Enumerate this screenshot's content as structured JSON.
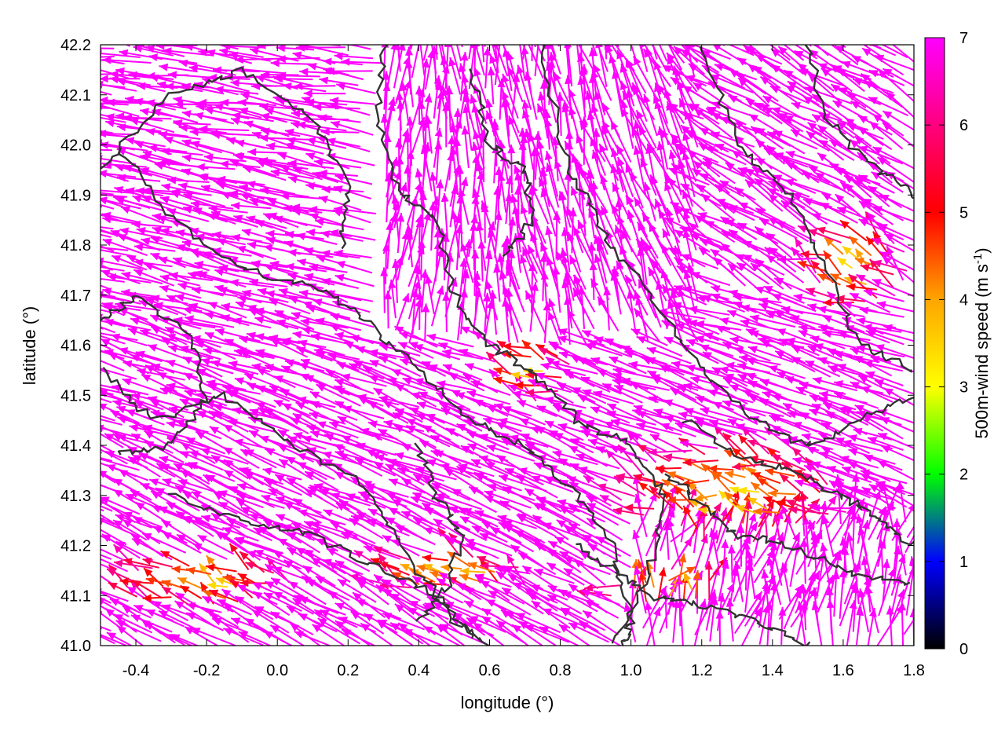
{
  "chart_data": {
    "type": "vector-field",
    "xlabel": "longitude (°)",
    "ylabel": "latitude (°)",
    "colorbar_label": "500m-wind speed (m s",
    "colorbar_label_sup": "-1",
    "colorbar_label_end": ")",
    "xlim": [
      -0.5,
      1.8
    ],
    "ylim": [
      41.0,
      42.2
    ],
    "x_ticks": [
      "-0.4",
      "-0.2",
      "0.0",
      "0.2",
      "0.4",
      "0.6",
      "0.8",
      "1.0",
      "1.2",
      "1.4",
      "1.6",
      "1.8"
    ],
    "y_ticks": [
      "41.0",
      "41.1",
      "41.2",
      "41.3",
      "41.4",
      "41.5",
      "41.6",
      "41.7",
      "41.8",
      "41.9",
      "42.0",
      "42.1",
      "42.2"
    ],
    "colorbar_range": [
      0,
      7
    ],
    "colorbar_ticks": [
      "0",
      "1",
      "2",
      "3",
      "4",
      "5",
      "6",
      "7"
    ],
    "colorbar_colors": [
      "#000000",
      "#0000ff",
      "#00ff00",
      "#ffff00",
      "#ffa500",
      "#ff0000",
      "#ff00ff"
    ],
    "vector_color_saturated": "#ff00ff",
    "contour_color": "#333333",
    "calm_regions": [
      {
        "lon": 1.3,
        "lat": 41.3,
        "rlon": 0.35,
        "rlat": 0.12
      },
      {
        "lon": 0.73,
        "lat": 41.55,
        "rlon": 0.12,
        "rlat": 0.07
      },
      {
        "lon": 1.1,
        "lat": 41.11,
        "rlon": 0.2,
        "rlat": 0.05
      },
      {
        "lon": -0.2,
        "lat": 41.12,
        "rlon": 0.3,
        "rlat": 0.06
      },
      {
        "lon": 0.5,
        "lat": 41.14,
        "rlon": 0.25,
        "rlat": 0.05
      },
      {
        "lon": 1.65,
        "lat": 41.75,
        "rlon": 0.15,
        "rlat": 0.1
      }
    ],
    "contours": [
      [
        [
          -0.5,
          41.55
        ],
        [
          -0.35,
          41.45
        ],
        [
          -0.15,
          41.5
        ],
        [
          0.05,
          41.4
        ],
        [
          0.25,
          41.32
        ],
        [
          0.35,
          41.2
        ],
        [
          0.5,
          41.05
        ],
        [
          0.6,
          41.0
        ]
      ],
      [
        [
          -0.45,
          42.0
        ],
        [
          -0.3,
          41.85
        ],
        [
          -0.1,
          41.75
        ],
        [
          0.1,
          41.72
        ],
        [
          0.25,
          41.65
        ],
        [
          0.4,
          41.55
        ],
        [
          0.55,
          41.45
        ],
        [
          0.7,
          41.4
        ],
        [
          0.85,
          41.3
        ],
        [
          0.95,
          41.2
        ],
        [
          1.0,
          41.05
        ],
        [
          0.98,
          41.0
        ]
      ],
      [
        [
          0.3,
          42.2
        ],
        [
          0.28,
          42.05
        ],
        [
          0.35,
          41.9
        ],
        [
          0.45,
          41.85
        ],
        [
          0.5,
          41.7
        ],
        [
          0.6,
          41.6
        ],
        [
          0.72,
          41.55
        ],
        [
          0.85,
          41.45
        ],
        [
          1.0,
          41.4
        ],
        [
          1.1,
          41.3
        ],
        [
          1.05,
          41.15
        ],
        [
          0.95,
          41.0
        ]
      ],
      [
        [
          0.75,
          42.2
        ],
        [
          0.8,
          42.0
        ],
        [
          0.9,
          41.85
        ],
        [
          1.05,
          41.7
        ],
        [
          1.2,
          41.55
        ],
        [
          1.35,
          41.45
        ],
        [
          1.5,
          41.4
        ],
        [
          1.65,
          41.45
        ],
        [
          1.8,
          41.5
        ]
      ],
      [
        [
          -0.3,
          41.3
        ],
        [
          -0.1,
          41.25
        ],
        [
          0.1,
          41.22
        ],
        [
          0.3,
          41.15
        ],
        [
          0.45,
          41.1
        ],
        [
          0.55,
          41.02
        ]
      ],
      [
        [
          1.15,
          41.45
        ],
        [
          1.3,
          41.38
        ],
        [
          1.45,
          41.35
        ],
        [
          1.6,
          41.3
        ],
        [
          1.7,
          41.25
        ],
        [
          1.8,
          41.2
        ]
      ],
      [
        [
          1.2,
          42.2
        ],
        [
          1.3,
          42.0
        ],
        [
          1.45,
          41.9
        ],
        [
          1.55,
          41.75
        ],
        [
          1.65,
          41.6
        ],
        [
          1.8,
          41.55
        ]
      ],
      [
        [
          -0.5,
          41.95
        ],
        [
          -0.3,
          42.1
        ],
        [
          -0.1,
          42.15
        ],
        [
          0.1,
          42.05
        ],
        [
          0.2,
          41.92
        ],
        [
          0.18,
          41.8
        ]
      ],
      [
        [
          0.4,
          41.4
        ],
        [
          0.45,
          41.3
        ],
        [
          0.52,
          41.22
        ],
        [
          0.48,
          41.12
        ],
        [
          0.4,
          41.05
        ]
      ],
      [
        [
          1.1,
          41.35
        ],
        [
          1.2,
          41.28
        ],
        [
          1.3,
          41.22
        ],
        [
          1.45,
          41.2
        ],
        [
          1.6,
          41.15
        ],
        [
          1.8,
          41.12
        ]
      ],
      [
        [
          -0.5,
          41.65
        ],
        [
          -0.4,
          41.7
        ],
        [
          -0.25,
          41.62
        ],
        [
          -0.2,
          41.5
        ],
        [
          -0.3,
          41.4
        ],
        [
          -0.45,
          41.38
        ]
      ],
      [
        [
          1.5,
          42.2
        ],
        [
          1.55,
          42.05
        ],
        [
          1.7,
          41.95
        ],
        [
          1.8,
          41.9
        ]
      ],
      [
        [
          0.55,
          42.15
        ],
        [
          0.6,
          42.0
        ],
        [
          0.7,
          41.95
        ],
        [
          0.72,
          41.85
        ],
        [
          0.65,
          41.78
        ]
      ],
      [
        [
          0.85,
          41.2
        ],
        [
          0.95,
          41.15
        ],
        [
          1.05,
          41.1
        ],
        [
          1.2,
          41.08
        ],
        [
          1.35,
          41.05
        ],
        [
          1.5,
          41.0
        ]
      ]
    ]
  }
}
